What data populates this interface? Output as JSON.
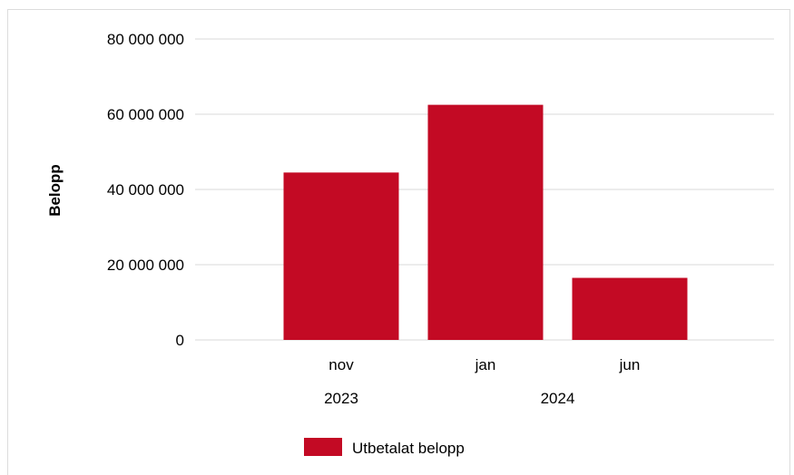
{
  "chart_data": {
    "type": "bar",
    "categories": [
      "nov",
      "jan",
      "jun"
    ],
    "category_groups": [
      {
        "label": "2023",
        "categories": [
          "nov"
        ]
      },
      {
        "label": "2024",
        "categories": [
          "jan",
          "jun"
        ]
      }
    ],
    "series": [
      {
        "name": "Utbetalat belopp",
        "values": [
          44500000,
          62500000,
          16500000
        ],
        "color": "#c30a24"
      }
    ],
    "title": "",
    "xlabel": "",
    "ylabel": "Belopp",
    "ylim": [
      0,
      80000000
    ],
    "yticks": [
      0,
      20000000,
      40000000,
      60000000,
      80000000
    ],
    "ytick_labels": [
      "0",
      "20 000 000",
      "40 000 000",
      "60 000 000",
      "80 000 000"
    ],
    "grid": true,
    "gridline_color": "#d9d9d9",
    "legend_position": "bottom"
  }
}
